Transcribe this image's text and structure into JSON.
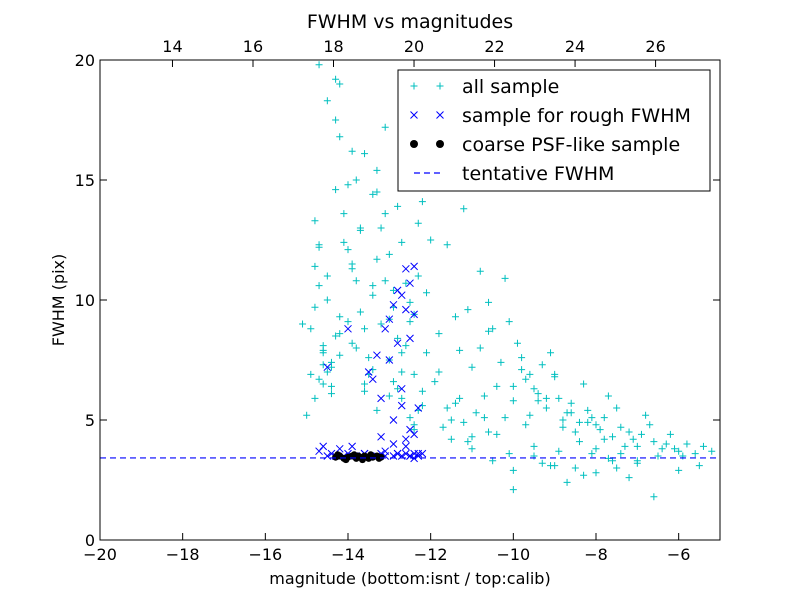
{
  "chart_data": {
    "type": "scatter",
    "title": "FWHM vs magnitudes",
    "xlabel": "magnitude (bottom:isnt / top:calib)",
    "ylabel": "FWHM (pix)",
    "xlim": [
      -20,
      -5
    ],
    "ylim": [
      0,
      20
    ],
    "top_xlim": [
      12.2,
      27.6
    ],
    "x_ticks": [
      -20,
      -18,
      -16,
      -14,
      -12,
      -10,
      -8,
      -6
    ],
    "y_ticks": [
      0,
      5,
      10,
      15,
      20
    ],
    "top_x_ticks": [
      14,
      16,
      18,
      20,
      22,
      24,
      26
    ],
    "grid": false,
    "legend_position": "top-right",
    "colors": {
      "all_sample": "#00bfbf",
      "rough_sample": "#0000ff",
      "psf_sample": "#000000",
      "tentative": "#0000ff"
    },
    "series": [
      {
        "name": "all sample",
        "marker": "plus",
        "x": [
          -15.1,
          -15.0,
          -14.9,
          -14.8,
          -14.8,
          -14.7,
          -14.7,
          -14.6,
          -14.6,
          -14.5,
          -14.5,
          -14.4,
          -14.4,
          -14.3,
          -14.2,
          -14.2,
          -14.1,
          -14.0,
          -13.9,
          -13.8,
          -13.7,
          -13.6,
          -13.5,
          -13.4,
          -13.3,
          -13.2,
          -13.1,
          -13.0,
          -12.9,
          -12.8,
          -12.7,
          -12.6,
          -12.5,
          -12.4,
          -12.3,
          -12.2,
          -12.1,
          -12.0,
          -11.8,
          -11.6,
          -11.4,
          -11.2,
          -11.0,
          -10.8,
          -10.6,
          -10.4,
          -10.2,
          -10.0,
          -9.8,
          -9.6,
          -9.4,
          -9.2,
          -9.0,
          -8.8,
          -8.6,
          -8.4,
          -8.2,
          -8.0,
          -7.8,
          -7.6,
          -7.4,
          -7.2,
          -7.0,
          -6.8,
          -6.6,
          -6.4,
          -6.2,
          -6.0,
          -5.8,
          -5.6,
          -5.4,
          -5.2,
          -14.8,
          -14.6,
          -14.3,
          -14.0,
          -13.7,
          -13.4,
          -13.1,
          -12.8,
          -12.5,
          -12.2,
          -11.9,
          -11.5,
          -11.1,
          -10.7,
          -10.3,
          -9.9,
          -9.5,
          -9.1,
          -8.7,
          -8.3,
          -7.9,
          -7.5,
          -7.1,
          -6.7,
          -6.3,
          -5.9,
          -14.9,
          -14.7,
          -14.5,
          -14.2,
          -13.9,
          -13.6,
          -13.3,
          -13.0,
          -12.7,
          -12.4,
          -12.1,
          -11.7,
          -11.3,
          -10.9,
          -10.5,
          -10.1,
          -9.7,
          -9.3,
          -8.9,
          -8.5,
          -8.1,
          -7.7,
          -7.3,
          -6.9,
          -6.5,
          -6.1,
          -14.6,
          -14.4,
          -14.1,
          -13.8,
          -13.5,
          -13.2,
          -12.9,
          -12.6,
          -12.3,
          -11.8,
          -11.4,
          -11.0,
          -10.6,
          -10.2,
          -9.8,
          -9.4,
          -9.0,
          -8.6,
          -8.2,
          -7.8,
          -7.4,
          -7.0,
          -14.7,
          -14.5,
          -14.2,
          -13.9,
          -13.6,
          -13.3,
          -13.0,
          -12.7,
          -12.4,
          -11.6,
          -11.2,
          -10.8,
          -10.4,
          -10.0,
          -9.6,
          -9.2,
          -8.8,
          -8.4,
          -8.0,
          -7.6,
          -14.8,
          -14.6,
          -14.3,
          -14.0,
          -13.7,
          -13.4,
          -13.1,
          -12.8,
          -12.5,
          -12.2,
          -11.5,
          -11.0,
          -10.5,
          -10.0,
          -9.5,
          -9.0,
          -8.5,
          -8.0,
          -7.5,
          -7.0,
          -14.4,
          -14.2,
          -13.9,
          -13.6,
          -13.3,
          -13.0,
          -12.7,
          -12.4,
          -11.3,
          -10.7,
          -10.1,
          -9.7,
          -9.3,
          -8.9,
          -8.3,
          -7.7,
          -14.7,
          -14.3,
          -13.8,
          -13.4,
          -12.9,
          -12.5,
          -12.3,
          -11.1,
          -10.6,
          -10.0,
          -9.5,
          -9.1,
          -8.7,
          -8.1,
          -7.2,
          -6.6,
          -6.0,
          -5.5
        ],
        "y": [
          9.0,
          5.2,
          8.8,
          13.3,
          9.7,
          19.8,
          12.2,
          7.8,
          6.5,
          18.3,
          11.0,
          7.2,
          6.1,
          19.2,
          16.8,
          7.7,
          12.4,
          9.1,
          11.5,
          8.0,
          13.0,
          16.1,
          6.9,
          14.4,
          11.7,
          9.0,
          13.6,
          7.5,
          10.4,
          13.9,
          12.4,
          10.7,
          14.7,
          9.4,
          13.2,
          14.1,
          7.8,
          12.5,
          8.6,
          12.3,
          9.3,
          13.8,
          7.2,
          11.2,
          8.7,
          6.4,
          10.9,
          5.8,
          7.6,
          6.9,
          6.1,
          5.5,
          6.8,
          5.0,
          5.7,
          4.9,
          5.4,
          4.8,
          5.1,
          4.3,
          4.7,
          4.5,
          3.9,
          5.2,
          4.1,
          3.8,
          4.4,
          3.7,
          4.0,
          3.6,
          3.9,
          3.7,
          11.4,
          7.3,
          17.5,
          14.8,
          12.9,
          10.2,
          17.2,
          8.4,
          9.9,
          5.6,
          6.6,
          5.0,
          9.6,
          6.0,
          7.4,
          8.2,
          6.3,
          7.8,
          5.3,
          6.5,
          4.6,
          5.5,
          4.2,
          4.8,
          4.0,
          3.5,
          6.9,
          10.6,
          7.0,
          19.0,
          8.2,
          6.2,
          15.4,
          11.9,
          5.9,
          6.9,
          10.3,
          4.7,
          7.9,
          5.3,
          8.8,
          9.1,
          6.7,
          7.3,
          5.9,
          4.5,
          5.1,
          6.0,
          3.9,
          4.4,
          3.5,
          3.8,
          8.1,
          6.4,
          13.6,
          10.8,
          7.6,
          13.0,
          9.7,
          8.1,
          5.4,
          7.0,
          5.7,
          4.3,
          9.9,
          5.1,
          7.1,
          5.8,
          6.9,
          5.3,
          4.9,
          4.2,
          3.6,
          3.2,
          6.7,
          10.0,
          8.6,
          16.2,
          6.5,
          5.4,
          9.2,
          7.0,
          4.6,
          5.5,
          4.9,
          8.0,
          4.4,
          6.4,
          5.2,
          5.9,
          4.7,
          4.1,
          3.8,
          3.3,
          5.9,
          7.9,
          14.6,
          12.1,
          9.5,
          7.1,
          10.8,
          6.3,
          5.1,
          6.2,
          4.2,
          3.8,
          3.3,
          2.9,
          3.5,
          3.1,
          3.0,
          2.8,
          3.0,
          3.3,
          7.4,
          9.3,
          11.3,
          8.8,
          14.5,
          6.0,
          7.8,
          4.8,
          5.9,
          5.1,
          3.6,
          4.8,
          3.2,
          3.7,
          2.7,
          3.4,
          12.3,
          8.5,
          15.0,
          10.6,
          6.6,
          9.1,
          11.0,
          4.1,
          4.5,
          2.1,
          3.9,
          3.1,
          2.4,
          3.6,
          2.6,
          1.8,
          2.9,
          3.1
        ]
      },
      {
        "name": "sample for rough FWHM",
        "marker": "x",
        "x": [
          -12.4,
          -12.6,
          -12.5,
          -12.8,
          -12.7,
          -13.0,
          -13.1,
          -12.9,
          -13.3,
          -13.5,
          -13.2,
          -14.0,
          -14.5,
          -12.6,
          -12.4,
          -12.5,
          -12.8,
          -13.0,
          -12.7,
          -13.4,
          -12.3,
          -12.5,
          -12.6,
          -12.9,
          -14.6,
          -14.7,
          -14.2,
          -13.8,
          -13.6,
          -13.9,
          -13.2,
          -12.7,
          -12.4,
          -12.3,
          -12.6,
          -12.9,
          -13.1,
          -12.5,
          -12.8,
          -12.4,
          -14.5,
          -14.3,
          -14.1,
          -13.9,
          -13.7,
          -13.5,
          -13.3,
          -13.1,
          -12.9,
          -12.7,
          -12.5,
          -12.3,
          -14.4,
          -14.0,
          -13.6,
          -13.2,
          -12.8,
          -12.6,
          -12.4,
          -12.2
        ],
        "y": [
          11.4,
          11.3,
          10.7,
          10.4,
          10.2,
          9.2,
          8.8,
          9.8,
          7.7,
          7.0,
          5.9,
          8.8,
          7.2,
          9.6,
          9.4,
          8.4,
          8.2,
          7.5,
          6.3,
          6.7,
          5.5,
          4.6,
          4.2,
          5.0,
          3.9,
          3.7,
          3.8,
          3.5,
          3.6,
          3.9,
          4.3,
          5.6,
          4.4,
          3.6,
          3.9,
          4.0,
          3.7,
          3.5,
          3.6,
          3.4,
          3.5,
          3.5,
          3.5,
          3.5,
          3.5,
          3.5,
          3.5,
          3.5,
          3.5,
          3.5,
          3.5,
          3.5,
          3.6,
          3.6,
          3.6,
          3.6,
          3.6,
          3.6,
          3.6,
          3.6
        ]
      },
      {
        "name": "coarse PSF-like sample",
        "marker": "circle",
        "x": [
          -14.3,
          -14.2,
          -14.1,
          -14.0,
          -13.9,
          -13.8,
          -13.7,
          -13.6,
          -13.5,
          -13.4,
          -13.3,
          -13.2,
          -14.25,
          -14.05,
          -13.85,
          -13.65,
          -13.45,
          -13.25,
          -13.75,
          -13.55
        ],
        "y": [
          3.45,
          3.5,
          3.4,
          3.45,
          3.5,
          3.4,
          3.45,
          3.5,
          3.4,
          3.45,
          3.5,
          3.45,
          3.55,
          3.35,
          3.55,
          3.35,
          3.55,
          3.4,
          3.5,
          3.45
        ]
      },
      {
        "name": "tentative FWHM",
        "type": "hline",
        "y": 3.42
      }
    ]
  }
}
